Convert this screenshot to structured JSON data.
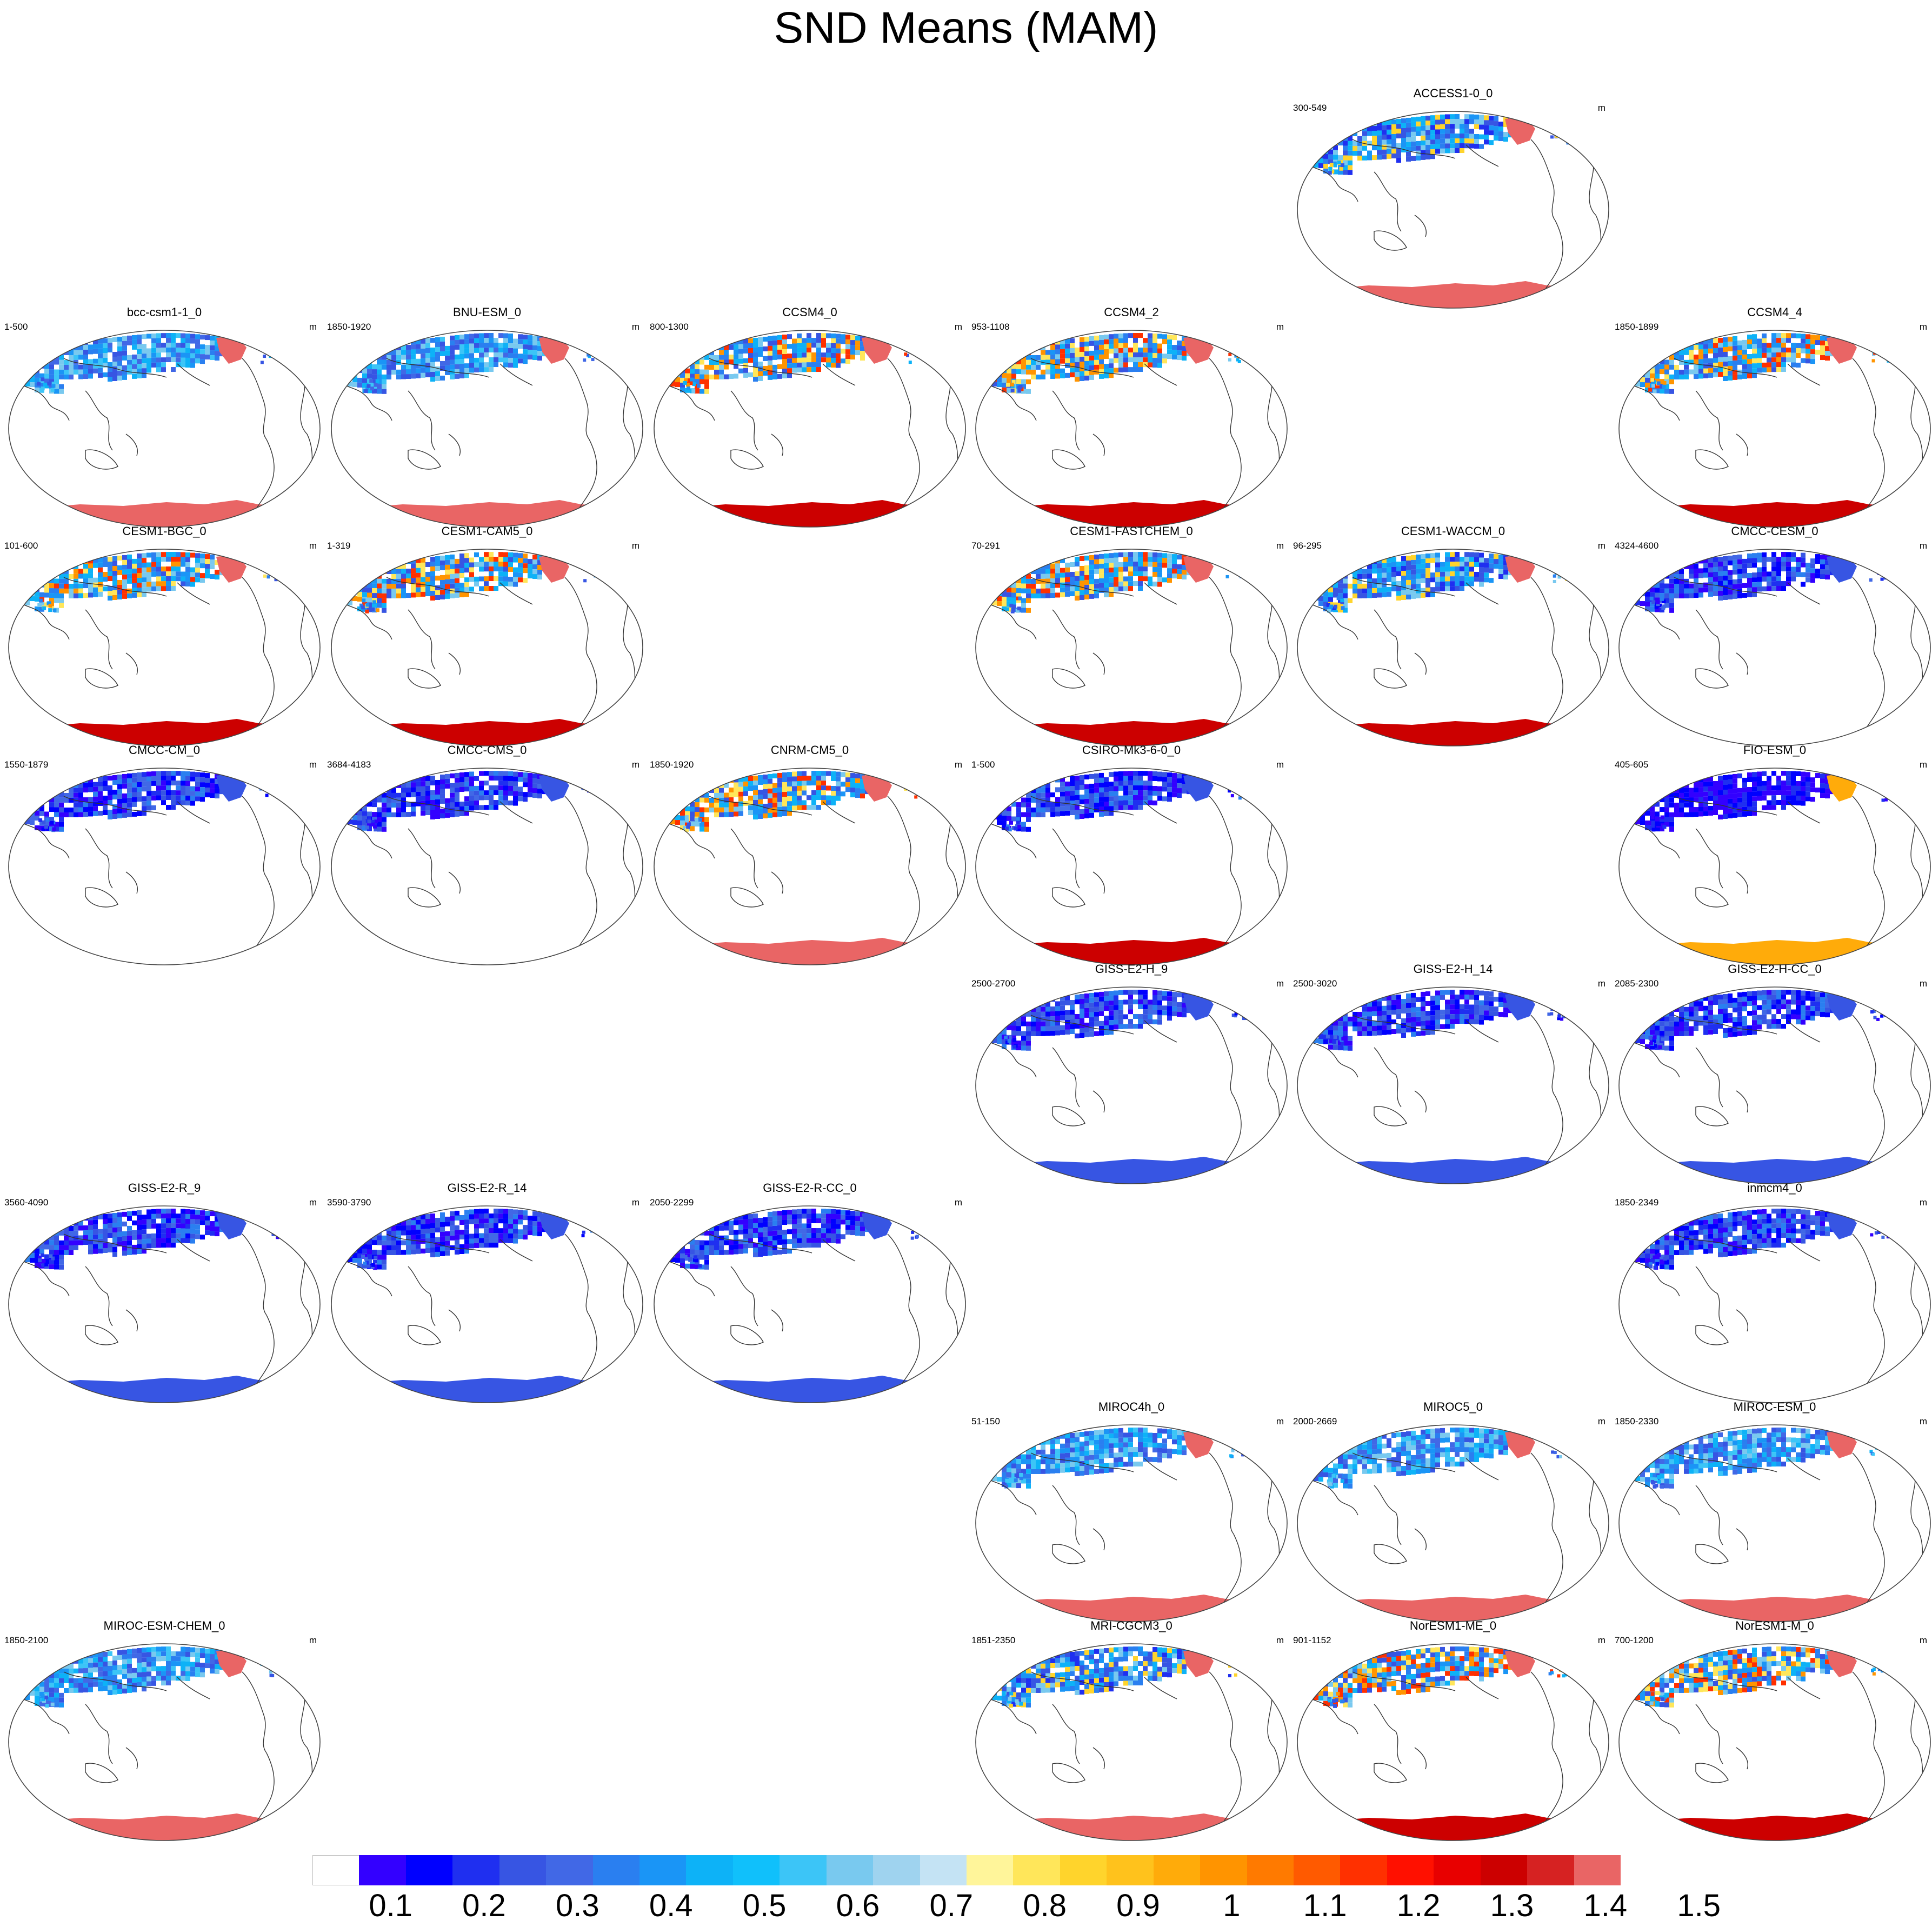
{
  "title": "SND Means (MAM)",
  "unit": "m",
  "colors": {
    "fill_levels": [
      "#ffffff",
      "#3300ff",
      "#0000ff",
      "#1f2ff0",
      "#3755e3",
      "#4168e6",
      "#2a7ff0",
      "#1a95f6",
      "#0db2f7",
      "#10c0fb",
      "#3cc5f7",
      "#79c9ef",
      "#9fd3ef",
      "#c4e3f4",
      "#fff59a",
      "#ffe65a",
      "#ffd42c",
      "#ffc21c",
      "#ffab0a",
      "#ff9400",
      "#ff7a00",
      "#ff5a00",
      "#ff3000",
      "#ff1000",
      "#e80000",
      "#cc0000",
      "#d62222",
      "#e96565"
    ],
    "land_outline": "#333333",
    "greenland": "#e96565",
    "antarctica_default": "#e96565"
  },
  "colorbar": {
    "labels": [
      "0.1",
      "0.2",
      "0.3",
      "0.4",
      "0.5",
      "0.6",
      "0.7",
      "0.8",
      "0.9",
      "1",
      "1.1",
      "1.2",
      "1.3",
      "1.4",
      "1.5"
    ]
  },
  "panels": [
    {
      "name": "ACCESS1-0_0",
      "range": "300-549",
      "row": 0,
      "col": 4,
      "snow": "mix",
      "antarctica": "#e96565"
    },
    {
      "name": "bcc-csm1-1_0",
      "range": "1-500",
      "row": 1,
      "col": 0,
      "snow": "light",
      "antarctica": "#e96565"
    },
    {
      "name": "BNU-ESM_0",
      "range": "1850-1920",
      "row": 1,
      "col": 1,
      "snow": "light",
      "antarctica": "#e96565"
    },
    {
      "name": "CCSM4_0",
      "range": "800-1300",
      "row": 1,
      "col": 2,
      "snow": "mixwarm",
      "antarctica": "#cc0000"
    },
    {
      "name": "CCSM4_2",
      "range": "953-1108",
      "row": 1,
      "col": 3,
      "snow": "mixwarm",
      "antarctica": "#cc0000"
    },
    {
      "name": "CCSM4_4",
      "range": "1850-1899",
      "row": 1,
      "col": 5,
      "snow": "mixwarm",
      "antarctica": "#cc0000"
    },
    {
      "name": "CESM1-BGC_0",
      "range": "101-600",
      "row": 2,
      "col": 0,
      "snow": "mixwarm",
      "antarctica": "#cc0000"
    },
    {
      "name": "CESM1-CAM5_0",
      "range": "1-319",
      "row": 2,
      "col": 1,
      "snow": "mixwarm",
      "antarctica": "#cc0000"
    },
    {
      "name": "CESM1-FASTCHEM_0",
      "range": "70-291",
      "row": 2,
      "col": 3,
      "snow": "mixwarm",
      "antarctica": "#cc0000"
    },
    {
      "name": "CESM1-WACCM_0",
      "range": "96-295",
      "row": 2,
      "col": 4,
      "snow": "mix",
      "antarctica": "#cc0000"
    },
    {
      "name": "CMCC-CESM_0",
      "range": "4324-4600",
      "row": 2,
      "col": 5,
      "snow": "dark",
      "antarctica": "none"
    },
    {
      "name": "CMCC-CM_0",
      "range": "1550-1879",
      "row": 3,
      "col": 0,
      "snow": "dark",
      "antarctica": "none"
    },
    {
      "name": "CMCC-CMS_0",
      "range": "3684-4183",
      "row": 3,
      "col": 1,
      "snow": "dark",
      "antarctica": "none"
    },
    {
      "name": "CNRM-CM5_0",
      "range": "1850-1920",
      "row": 3,
      "col": 2,
      "snow": "mixwarm",
      "antarctica": "#e96565"
    },
    {
      "name": "CSIRO-Mk3-6-0_0",
      "range": "1-500",
      "row": 3,
      "col": 3,
      "snow": "dark",
      "antarctica": "#cc0000"
    },
    {
      "name": "FIO-ESM_0",
      "range": "405-605",
      "row": 3,
      "col": 5,
      "snow": "darkest",
      "antarctica": "#ffab0a"
    },
    {
      "name": "GISS-E2-H_9",
      "range": "2500-2700",
      "row": 4,
      "col": 3,
      "snow": "dark",
      "antarctica": "#3755e3"
    },
    {
      "name": "GISS-E2-H_14",
      "range": "2500-3020",
      "row": 4,
      "col": 4,
      "snow": "dark",
      "antarctica": "#3755e3"
    },
    {
      "name": "GISS-E2-H-CC_0",
      "range": "2085-2300",
      "row": 4,
      "col": 5,
      "snow": "dark",
      "antarctica": "#3755e3"
    },
    {
      "name": "GISS-E2-R_9",
      "range": "3560-4090",
      "row": 5,
      "col": 0,
      "snow": "dark",
      "antarctica": "#3755e3"
    },
    {
      "name": "GISS-E2-R_14",
      "range": "3590-3790",
      "row": 5,
      "col": 1,
      "snow": "dark",
      "antarctica": "#3755e3"
    },
    {
      "name": "GISS-E2-R-CC_0",
      "range": "2050-2299",
      "row": 5,
      "col": 2,
      "snow": "dark",
      "antarctica": "#3755e3"
    },
    {
      "name": "inmcm4_0",
      "range": "1850-2349",
      "row": 5,
      "col": 5,
      "snow": "dark",
      "antarctica": "none"
    },
    {
      "name": "MIROC4h_0",
      "range": "51-150",
      "row": 6,
      "col": 3,
      "snow": "light",
      "antarctica": "#e96565"
    },
    {
      "name": "MIROC5_0",
      "range": "2000-2669",
      "row": 6,
      "col": 4,
      "snow": "light",
      "antarctica": "#e96565"
    },
    {
      "name": "MIROC-ESM_0",
      "range": "1850-2330",
      "row": 6,
      "col": 5,
      "snow": "light",
      "antarctica": "#e96565"
    },
    {
      "name": "MIROC-ESM-CHEM_0",
      "range": "1850-2100",
      "row": 7,
      "col": 0,
      "snow": "light",
      "antarctica": "#e96565"
    },
    {
      "name": "MRI-CGCM3_0",
      "range": "1851-2350",
      "row": 7,
      "col": 3,
      "snow": "mix",
      "antarctica": "#e96565"
    },
    {
      "name": "NorESM1-ME_0",
      "range": "901-1152",
      "row": 7,
      "col": 4,
      "snow": "mixwarm",
      "antarctica": "#cc0000"
    },
    {
      "name": "NorESM1-M_0",
      "range": "700-1200",
      "row": 7,
      "col": 5,
      "snow": "mixwarm",
      "antarctica": "#cc0000"
    }
  ],
  "chart_data": {
    "type": "heatmap",
    "title": "SND Means (MAM)",
    "unit": "m",
    "colorbar_levels": [
      0.1,
      0.2,
      0.3,
      0.4,
      0.5,
      0.6,
      0.7,
      0.8,
      0.9,
      1,
      1.1,
      1.2,
      1.3,
      1.4,
      1.5
    ]
  }
}
